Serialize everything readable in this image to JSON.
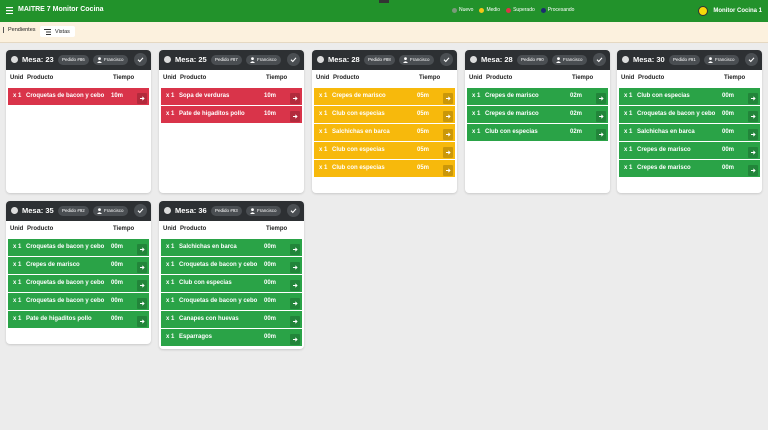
{
  "header": {
    "title": "MAITRE 7 Monitor Cocina",
    "legend": [
      {
        "label": "Nuevo",
        "color": "#7a9a7a"
      },
      {
        "label": "Medio",
        "color": "#f5c518"
      },
      {
        "label": "Superado",
        "color": "#dc3545"
      },
      {
        "label": "Procesando",
        "color": "#1c2d6e"
      }
    ],
    "device": "Monitor Cocina 1"
  },
  "tabs": {
    "pending": "Pendientes",
    "viewed": "Vistas"
  },
  "columns": [
    "Unid",
    "Producto",
    "Tiempo"
  ],
  "orders": [
    {
      "table": "Mesa: 23",
      "order": "Pedido #86",
      "waiter": "Francisco",
      "color": "#d9344a",
      "items": [
        {
          "qty": "x 1",
          "product": "Croquetas de bacon y cebo",
          "time": "10m"
        }
      ]
    },
    {
      "table": "Mesa: 25",
      "order": "Pedido #87",
      "waiter": "Francisco",
      "color": "#d9344a",
      "items": [
        {
          "qty": "x 1",
          "product": "Sopa de verduras",
          "time": "10m"
        },
        {
          "qty": "x 1",
          "product": "Pate de higaditos pollo",
          "time": "10m"
        }
      ]
    },
    {
      "table": "Mesa: 28",
      "order": "Pedido #88",
      "waiter": "Francisco",
      "color": "#f7b90c",
      "items": [
        {
          "qty": "x 1",
          "product": "Crepes de marisco",
          "time": "05m"
        },
        {
          "qty": "x 1",
          "product": "Club con especias",
          "time": "05m"
        },
        {
          "qty": "x 1",
          "product": "Salchichas en barca",
          "time": "05m"
        },
        {
          "qty": "x 1",
          "product": "Club con especias",
          "time": "05m"
        },
        {
          "qty": "x 1",
          "product": "Club con especias",
          "time": "05m"
        }
      ]
    },
    {
      "table": "Mesa: 28",
      "order": "Pedido #90",
      "waiter": "Francisco",
      "color": "#2aa347",
      "items": [
        {
          "qty": "x 1",
          "product": "Crepes de marisco",
          "time": "02m"
        },
        {
          "qty": "x 1",
          "product": "Crepes de marisco",
          "time": "02m"
        },
        {
          "qty": "x 1",
          "product": "Club con especias",
          "time": "02m"
        }
      ]
    },
    {
      "table": "Mesa: 30",
      "order": "Pedido #91",
      "waiter": "Francisco",
      "color": "#2aa347",
      "items": [
        {
          "qty": "x 1",
          "product": "Club con especias",
          "time": "00m"
        },
        {
          "qty": "x 1",
          "product": "Croquetas de bacon y cebo",
          "time": "00m"
        },
        {
          "qty": "x 1",
          "product": "Salchichas en barca",
          "time": "00m"
        },
        {
          "qty": "x 1",
          "product": "Crepes de marisco",
          "time": "00m"
        },
        {
          "qty": "x 1",
          "product": "Crepes de marisco",
          "time": "00m"
        }
      ]
    },
    {
      "table": "Mesa: 35",
      "order": "Pedido #92",
      "waiter": "Francisco",
      "color": "#2aa347",
      "items": [
        {
          "qty": "x 1",
          "product": "Croquetas de bacon y cebo",
          "time": "00m"
        },
        {
          "qty": "x 1",
          "product": "Crepes de marisco",
          "time": "00m"
        },
        {
          "qty": "x 1",
          "product": "Croquetas de bacon y cebo",
          "time": "00m"
        },
        {
          "qty": "x 1",
          "product": "Croquetas de bacon y cebo",
          "time": "00m"
        },
        {
          "qty": "x 1",
          "product": "Pate de higaditos pollo",
          "time": "00m"
        }
      ]
    },
    {
      "table": "Mesa: 36",
      "order": "Pedido #93",
      "waiter": "Francisco",
      "color": "#2aa347",
      "items": [
        {
          "qty": "x 1",
          "product": "Salchichas en barca",
          "time": "00m"
        },
        {
          "qty": "x 1",
          "product": "Croquetas de bacon y cebo",
          "time": "00m"
        },
        {
          "qty": "x 1",
          "product": "Club con especias",
          "time": "00m"
        },
        {
          "qty": "x 1",
          "product": "Croquetas de bacon y cebo",
          "time": "00m"
        },
        {
          "qty": "x 1",
          "product": "Canapes con huevas",
          "time": "00m"
        },
        {
          "qty": "x 1",
          "product": "Esparragos",
          "time": "00m"
        }
      ]
    }
  ]
}
